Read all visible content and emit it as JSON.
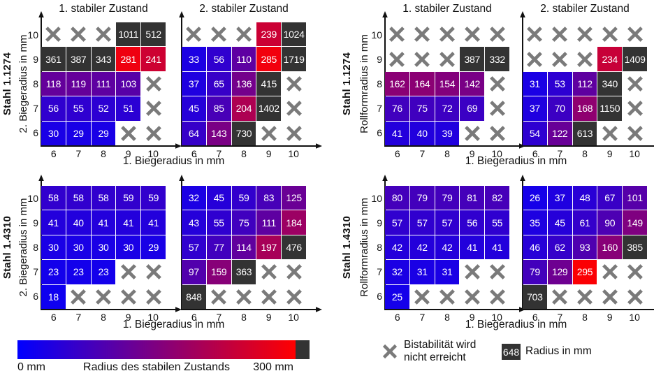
{
  "figure": {
    "colormap": {
      "min_mm": 0,
      "max_mm": 300,
      "low_color": "#0000ff",
      "high_color": "#ff0000",
      "overflow_color": "#333333",
      "x_mark_color": "#7a7a7a",
      "cell_text_color": "#ffffff"
    }
  },
  "chart_data": [
    {
      "type": "heatmap",
      "steel": "Stahl 1.1274",
      "title": "1. stabiler Zustand",
      "xlabel": "1. Biegeradius in mm",
      "ylabel": "2. Biegeradius in mm",
      "unit": "mm",
      "x": [
        6,
        7,
        8,
        9,
        10
      ],
      "y": [
        10,
        9,
        8,
        7,
        6
      ],
      "values": [
        [
          null,
          null,
          null,
          1011,
          512
        ],
        [
          361,
          387,
          343,
          281,
          241
        ],
        [
          118,
          119,
          111,
          103,
          null
        ],
        [
          56,
          55,
          52,
          51,
          null
        ],
        [
          30,
          29,
          29,
          null,
          null
        ]
      ]
    },
    {
      "type": "heatmap",
      "steel": "Stahl 1.1274",
      "title": "2. stabiler Zustand",
      "xlabel": "1. Biegeradius in mm",
      "ylabel": "2. Biegeradius in mm",
      "unit": "mm",
      "x": [
        6,
        7,
        8,
        9,
        10
      ],
      "y": [
        10,
        9,
        8,
        7,
        6
      ],
      "values": [
        [
          null,
          null,
          null,
          239,
          1024
        ],
        [
          33,
          56,
          110,
          285,
          1719
        ],
        [
          37,
          65,
          136,
          415,
          null
        ],
        [
          45,
          85,
          204,
          1402,
          null
        ],
        [
          64,
          143,
          730,
          null,
          null
        ]
      ]
    },
    {
      "type": "heatmap",
      "steel": "Stahl 1.1274",
      "title": "1. stabiler Zustand",
      "xlabel": "1. Biegeradius in mm",
      "ylabel": "Rollformradius in mm",
      "unit": "mm",
      "x": [
        6,
        7,
        8,
        9,
        10
      ],
      "y": [
        10,
        9,
        8,
        7,
        6
      ],
      "values": [
        [
          null,
          null,
          null,
          null,
          null
        ],
        [
          null,
          null,
          null,
          387,
          332
        ],
        [
          162,
          164,
          154,
          142,
          null
        ],
        [
          76,
          75,
          72,
          69,
          null
        ],
        [
          41,
          40,
          39,
          null,
          null
        ]
      ]
    },
    {
      "type": "heatmap",
      "steel": "Stahl 1.1274",
      "title": "2. stabiler Zustand",
      "xlabel": "1. Biegeradius in mm",
      "ylabel": "Rollformradius in mm",
      "unit": "mm",
      "x": [
        6,
        7,
        8,
        9,
        10
      ],
      "y": [
        10,
        9,
        8,
        7,
        6
      ],
      "values": [
        [
          null,
          null,
          null,
          null,
          null
        ],
        [
          null,
          null,
          null,
          234,
          1409
        ],
        [
          31,
          53,
          112,
          340,
          null
        ],
        [
          37,
          70,
          168,
          1150,
          null
        ],
        [
          54,
          122,
          613,
          null,
          null
        ]
      ]
    },
    {
      "type": "heatmap",
      "steel": "Stahl 1.4310",
      "title": "",
      "xlabel": "1. Biegeradius in mm",
      "ylabel": "2. Biegeradius in mm",
      "unit": "mm",
      "x": [
        6,
        7,
        8,
        9,
        10
      ],
      "y": [
        10,
        9,
        8,
        7,
        6
      ],
      "values": [
        [
          58,
          58,
          58,
          59,
          59
        ],
        [
          41,
          40,
          41,
          41,
          41
        ],
        [
          30,
          30,
          30,
          30,
          29
        ],
        [
          23,
          23,
          23,
          null,
          null
        ],
        [
          18,
          null,
          null,
          null,
          null
        ]
      ]
    },
    {
      "type": "heatmap",
      "steel": "Stahl 1.4310",
      "title": "",
      "xlabel": "1. Biegeradius in mm",
      "ylabel": "2. Biegeradius in mm",
      "unit": "mm",
      "x": [
        6,
        7,
        8,
        9,
        10
      ],
      "y": [
        10,
        9,
        8,
        7,
        6
      ],
      "values": [
        [
          32,
          45,
          59,
          83,
          125
        ],
        [
          43,
          55,
          75,
          111,
          184
        ],
        [
          57,
          77,
          114,
          197,
          476
        ],
        [
          97,
          159,
          363,
          null,
          null
        ],
        [
          848,
          null,
          null,
          null,
          null
        ]
      ]
    },
    {
      "type": "heatmap",
      "steel": "Stahl 1.4310",
      "title": "",
      "xlabel": "1. Biegeradius in mm",
      "ylabel": "Rollformradius in mm",
      "unit": "mm",
      "x": [
        6,
        7,
        8,
        9,
        10
      ],
      "y": [
        10,
        9,
        8,
        7,
        6
      ],
      "values": [
        [
          80,
          79,
          79,
          81,
          82
        ],
        [
          57,
          57,
          57,
          56,
          55
        ],
        [
          42,
          42,
          42,
          41,
          41
        ],
        [
          32,
          31,
          31,
          null,
          null
        ],
        [
          25,
          null,
          null,
          null,
          null
        ]
      ]
    },
    {
      "type": "heatmap",
      "steel": "Stahl 1.4310",
      "title": "",
      "xlabel": "1. Biegeradius in mm",
      "ylabel": "Rollformradius in mm",
      "unit": "mm",
      "x": [
        6,
        7,
        8,
        9,
        10
      ],
      "y": [
        10,
        9,
        8,
        7,
        6
      ],
      "values": [
        [
          26,
          37,
          48,
          67,
          101
        ],
        [
          35,
          45,
          61,
          90,
          149
        ],
        [
          46,
          62,
          93,
          160,
          385
        ],
        [
          79,
          129,
          295,
          null,
          null
        ],
        [
          703,
          null,
          null,
          null,
          null
        ]
      ]
    }
  ],
  "quadrants": [
    {
      "steel_label": "Stahl 1.1274",
      "y_axis_label": "2. Biegeradius in mm",
      "x_axis_label": "1. Biegeradius in mm",
      "plots": [
        0,
        1
      ]
    },
    {
      "steel_label": "Stahl 1.1274",
      "y_axis_label": "Rollformradius in mm",
      "x_axis_label": "1. Biegeradius in mm",
      "plots": [
        2,
        3
      ]
    },
    {
      "steel_label": "Stahl 1.4310",
      "y_axis_label": "2. Biegeradius in mm",
      "x_axis_label": "1. Biegeradius in mm",
      "plots": [
        4,
        5
      ]
    },
    {
      "steel_label": "Stahl 1.4310",
      "y_axis_label": "Rollformradius in mm",
      "x_axis_label": "1. Biegeradius in mm",
      "plots": [
        6,
        7
      ]
    }
  ],
  "colorbar": {
    "left_label": "0 mm",
    "center_label": "Radius des stabilen Zustands",
    "right_label": "300 mm"
  },
  "legend": {
    "x_line1": "Bistabilität wird",
    "x_line2": "nicht erreicht",
    "box_value": "648",
    "box_label": "Radius in mm"
  }
}
